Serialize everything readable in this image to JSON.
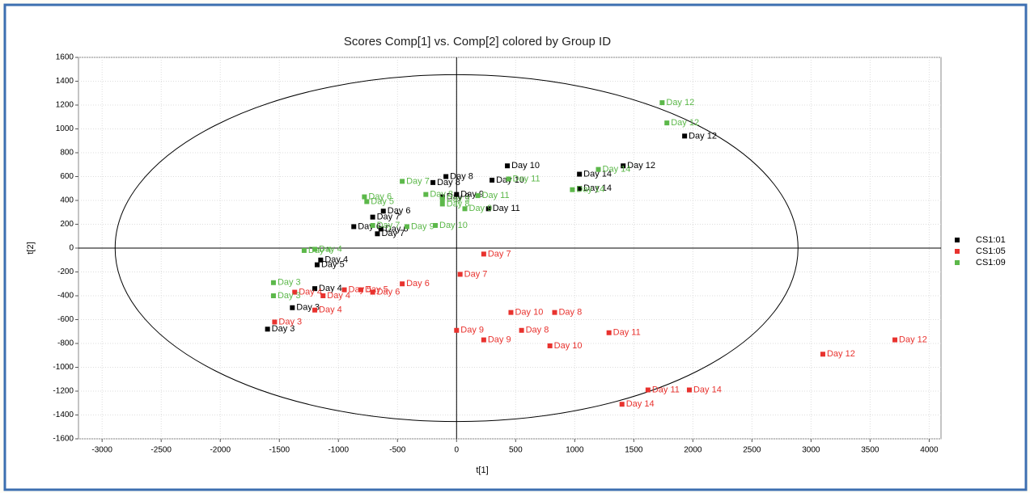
{
  "chart_data": {
    "type": "scatter",
    "title": "Scores Comp[1] vs. Comp[2] colored by Group ID",
    "x_label": "t[1]",
    "y_label": "t[2]",
    "xlim": [
      -3200,
      4100
    ],
    "xticks": [
      -3000,
      -2500,
      -2000,
      -1500,
      -1000,
      -500,
      0,
      500,
      1000,
      1500,
      2000,
      2500,
      3000,
      3500,
      4000
    ],
    "ylim": [
      -1600,
      1600
    ],
    "yticks": [
      -1600,
      -1400,
      -1200,
      -1000,
      -800,
      -600,
      -400,
      -200,
      0,
      200,
      400,
      600,
      800,
      1000,
      1200,
      1400,
      1600
    ],
    "grid": true,
    "legend": "right",
    "ellipse": {
      "rx": 2890,
      "ry": 1455
    },
    "series": [
      {
        "name": "CS1:01",
        "color": "#000000",
        "x": [
          1930,
          1410,
          1040,
          1040,
          430,
          300,
          -90,
          -200,
          0,
          -120,
          -620,
          -710,
          -870,
          -640,
          -670,
          -1150,
          -1180,
          -1200,
          -1390,
          -1600,
          270
        ],
        "y": [
          940,
          690,
          620,
          500,
          690,
          570,
          600,
          550,
          450,
          430,
          310,
          260,
          180,
          160,
          120,
          -100,
          -140,
          -340,
          -500,
          -680,
          330
        ],
        "labels": [
          "Day 12",
          "Day 12",
          "Day 14",
          "Day 14",
          "Day 10",
          "Day 10",
          "Day 8",
          "Day 8",
          "Day 9",
          "Day 9",
          "Day 6",
          "Day 7",
          "Day 6",
          "Day 6",
          "Day 7",
          "Day 4",
          "Day 5",
          "Day 4",
          "Day 3",
          "Day 3",
          "Day 11"
        ]
      },
      {
        "name": "CS1:05",
        "color": "#e8322e",
        "x": [
          230,
          30,
          -460,
          -710,
          -810,
          -950,
          -1130,
          -1370,
          -1200,
          -1540,
          460,
          830,
          0,
          550,
          230,
          790,
          1290,
          3710,
          3100,
          1620,
          1970,
          1400
        ],
        "y": [
          -50,
          -220,
          -300,
          -370,
          -350,
          -350,
          -400,
          -370,
          -520,
          -620,
          -540,
          -540,
          -690,
          -690,
          -770,
          -820,
          -710,
          -770,
          -890,
          -1190,
          -1190,
          -1310
        ],
        "labels": [
          "Day 7",
          "Day 7",
          "Day 6",
          "Day 6",
          "Day 5",
          "Day 5",
          "Day 4",
          "Day 4",
          "Day 4",
          "Day 3",
          "Day 10",
          "Day 8",
          "Day 9",
          "Day 8",
          "Day 9",
          "Day 10",
          "Day 11",
          "Day 12",
          "Day 12",
          "Day 11",
          "Day 14",
          "Day 14"
        ]
      },
      {
        "name": "CS1:09",
        "color": "#5cb84a",
        "x": [
          1740,
          1780,
          1200,
          980,
          440,
          180,
          -120,
          70,
          -460,
          -260,
          -120,
          -180,
          -420,
          -710,
          -780,
          -760,
          -1200,
          -1290,
          -1550,
          -1550
        ],
        "y": [
          1220,
          1050,
          660,
          490,
          580,
          440,
          410,
          330,
          560,
          450,
          370,
          190,
          180,
          190,
          430,
          390,
          -10,
          -20,
          -290,
          -400
        ],
        "labels": [
          "Day 12",
          "Day 12",
          "Day 14",
          "Day 14",
          "Day 11",
          "Day 11",
          "Day 9",
          "Day 9",
          "Day 7",
          "Day 8",
          "Day 8",
          "Day 10",
          "Day 9",
          "Day 7",
          "Day 6",
          "Day 5",
          "Day 4",
          "Day 4",
          "Day 3",
          "Day 3"
        ]
      }
    ]
  }
}
